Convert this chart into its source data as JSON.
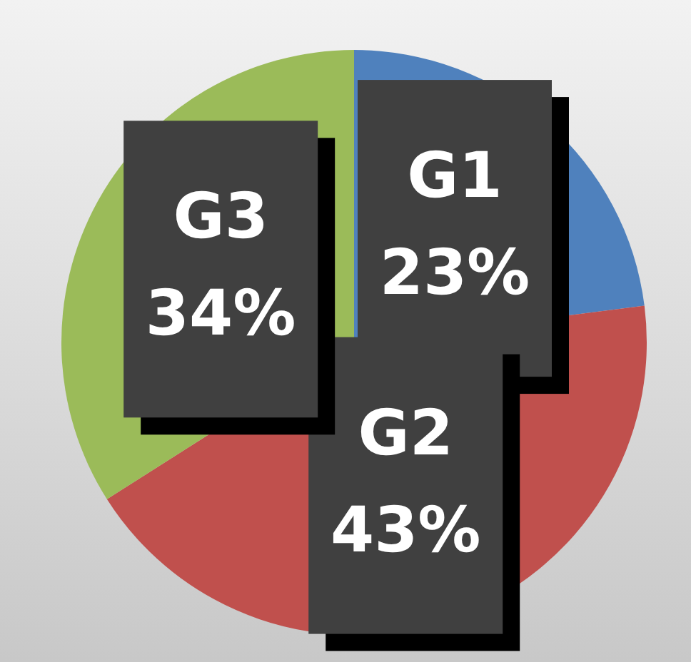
{
  "chart_data": {
    "type": "pie",
    "categories": [
      "G1",
      "G2",
      "G3"
    ],
    "values": [
      23,
      43,
      34
    ],
    "colors": [
      "#4f81bd",
      "#c0504d",
      "#9bbb59"
    ],
    "value_labels": [
      "23%",
      "43%",
      "34%"
    ]
  }
}
